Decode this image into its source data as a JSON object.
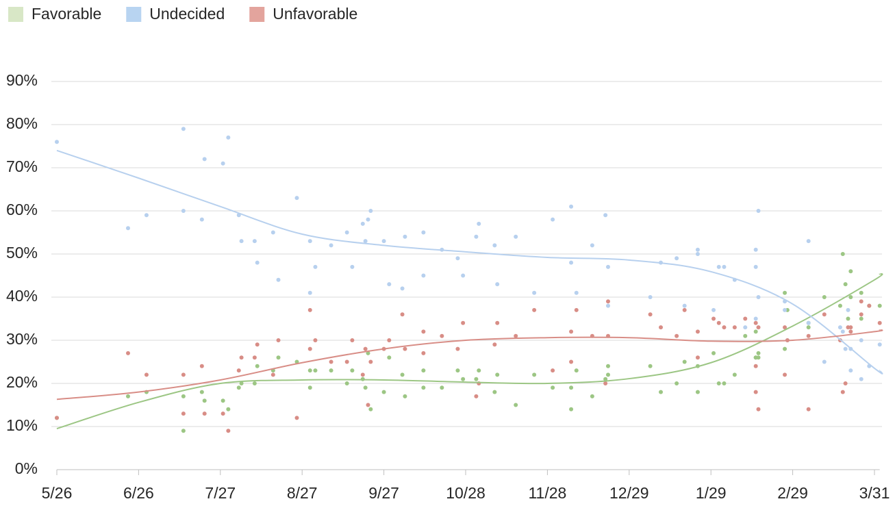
{
  "chart_data": {
    "type": "scatter",
    "legend": "top-left",
    "grid": true,
    "xlim": [
      "5/26",
      "4/2"
    ],
    "xticks": [
      "5/26",
      "6/26",
      "7/27",
      "8/27",
      "9/27",
      "10/28",
      "11/28",
      "12/29",
      "1/29",
      "2/29",
      "3/31"
    ],
    "ylim": [
      0,
      90
    ],
    "yticks": [
      {
        "value": 0,
        "label": "0%"
      },
      {
        "value": 10,
        "label": "10%"
      },
      {
        "value": 20,
        "label": "20%"
      },
      {
        "value": 30,
        "label": "30%"
      },
      {
        "value": 40,
        "label": "40%"
      },
      {
        "value": 50,
        "label": "50%"
      },
      {
        "value": 60,
        "label": "60%"
      },
      {
        "value": 70,
        "label": "70%"
      },
      {
        "value": 80,
        "label": "80%"
      },
      {
        "value": 90,
        "label": "90%"
      }
    ],
    "x": [
      "5/26",
      "6/22",
      "6/29",
      "7/13",
      "7/13",
      "7/20",
      "7/21",
      "7/28",
      "7/30",
      "8/3",
      "8/4",
      "8/9",
      "8/10",
      "8/16",
      "8/18",
      "8/25",
      "8/30",
      "8/30",
      "9/1",
      "9/7",
      "9/13",
      "9/15",
      "9/19",
      "9/20",
      "9/21",
      "9/22",
      "9/27",
      "9/29",
      "10/4",
      "10/5",
      "10/12",
      "10/12",
      "10/19",
      "10/25",
      "10/27",
      "11/1",
      "11/2",
      "11/8",
      "11/9",
      "11/16",
      "11/23",
      "11/30",
      "12/7",
      "12/7",
      "12/9",
      "12/15",
      "12/20",
      "12/21",
      "12/21",
      "1/6",
      "1/10",
      "1/16",
      "1/19",
      "1/24",
      "1/24",
      "1/30",
      "2/1",
      "2/3",
      "2/7",
      "2/11",
      "2/15",
      "2/15",
      "2/15",
      "2/16",
      "2/16",
      "2/26",
      "2/26",
      "2/27",
      "3/6",
      "3/6",
      "3/12",
      "3/18",
      "3/19",
      "3/20",
      "3/21",
      "3/22",
      "3/22",
      "3/26",
      "3/26",
      "3/29",
      "4/2"
    ],
    "trend_x": [
      "5/26",
      "6/26",
      "7/27",
      "8/27",
      "9/27",
      "10/28",
      "11/28",
      "12/29",
      "1/29",
      "2/29",
      "3/31",
      "4/2"
    ],
    "series": [
      {
        "name": "Favorable",
        "color": "#9cc684",
        "legend_color": "#d8e7c6",
        "values": [
          12,
          17,
          18,
          9,
          17,
          18,
          16,
          16,
          14,
          19,
          20,
          20,
          24,
          23,
          26,
          25,
          19,
          23,
          23,
          23,
          20,
          23,
          21,
          19,
          27,
          14,
          18,
          26,
          22,
          17,
          19,
          23,
          19,
          23,
          21,
          21,
          23,
          18,
          22,
          15,
          22,
          19,
          14,
          19,
          23,
          17,
          21,
          22,
          24,
          24,
          18,
          20,
          25,
          24,
          18,
          27,
          20,
          20,
          22,
          31,
          32,
          26,
          26,
          27,
          26,
          28,
          41,
          37,
          33,
          34,
          40,
          38,
          50,
          43,
          35,
          46,
          40,
          35,
          41,
          38,
          38
        ],
        "trend": [
          9.5,
          15.6,
          20,
          20.8,
          20.8,
          20.3,
          20,
          21.1,
          24.8,
          33.3,
          44,
          45.4
        ]
      },
      {
        "name": "Undecided",
        "color": "#b7d0ee",
        "legend_color": "#b8d4f1",
        "values": [
          76,
          56,
          59,
          79,
          60,
          58,
          72,
          71,
          77,
          59,
          53,
          53,
          48,
          55,
          44,
          63,
          53,
          41,
          47,
          52,
          55,
          47,
          57,
          53,
          58,
          60,
          53,
          43,
          42,
          54,
          55,
          45,
          51,
          49,
          45,
          54,
          57,
          52,
          43,
          54,
          41,
          58,
          61,
          48,
          41,
          52,
          59,
          47,
          38,
          40,
          48,
          49,
          38,
          50,
          51,
          37,
          47,
          47,
          44,
          33,
          35,
          47,
          51,
          60,
          40,
          37,
          39,
          30,
          53,
          34,
          25,
          33,
          32,
          28,
          37,
          23,
          28,
          30,
          21,
          24,
          29
        ],
        "trend": [
          74,
          67.6,
          61,
          54.6,
          52,
          50.5,
          49.2,
          48.6,
          45.9,
          38.4,
          23.5,
          23
        ]
      },
      {
        "name": "Unfavorable",
        "color": "#d88d86",
        "legend_color": "#e3a49d",
        "values": [
          12,
          27,
          22,
          13,
          22,
          24,
          13,
          13,
          9,
          23,
          26,
          26,
          29,
          22,
          30,
          12,
          28,
          37,
          30,
          25,
          25,
          30,
          22,
          28,
          15,
          25,
          28,
          30,
          36,
          28,
          27,
          32,
          31,
          28,
          34,
          17,
          20,
          29,
          34,
          31,
          37,
          23,
          25,
          32,
          37,
          31,
          20,
          31,
          39,
          36,
          33,
          31,
          37,
          26,
          32,
          35,
          34,
          33,
          33,
          35,
          34,
          24,
          18,
          14,
          33,
          33,
          22,
          30,
          14,
          31,
          36,
          30,
          18,
          20,
          33,
          33,
          32,
          39,
          36,
          38,
          34
        ],
        "trend": [
          16.3,
          18,
          20.8,
          24.8,
          28,
          30,
          30.6,
          30.6,
          29.8,
          30,
          32,
          32.4
        ]
      }
    ]
  }
}
